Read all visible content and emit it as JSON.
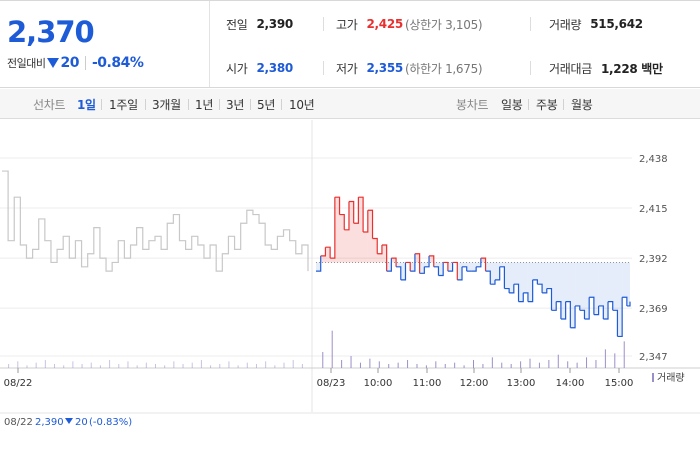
{
  "quote": {
    "price": "2,370",
    "change_label": "전일대비",
    "change_value": "20",
    "change_pct": "-0.84%",
    "prev_close_label": "전일",
    "prev_close": "2,390",
    "high_label": "고가",
    "high": "2,425",
    "upper_limit": "(상한가 3,105)",
    "volume_label": "거래량",
    "volume": "515,642",
    "open_label": "시가",
    "open": "2,380",
    "low_label": "저가",
    "low": "2,355",
    "lower_limit": "(하한가 1,675)",
    "trade_value_label": "거래대금",
    "trade_value": "1,228 백만"
  },
  "toolbar": {
    "line_chart_label": "선차트",
    "periods": [
      "1일",
      "1주일",
      "3개월",
      "1년",
      "3년",
      "5년",
      "10년"
    ],
    "active_period": "1일",
    "candle_chart_label": "봉차트",
    "candle_periods": [
      "일봉",
      "주봉",
      "월봉"
    ]
  },
  "colors": {
    "up": "#e8312f",
    "down": "#1e5bd6",
    "prev_day": "#c8c8c8",
    "volume": "#9c8fc9"
  },
  "chart_data": {
    "type": "line",
    "y_ticks": [
      "2,438",
      "2,415",
      "2,392",
      "2,369",
      "2,347"
    ],
    "ylim": [
      2347,
      2438
    ],
    "reference_price": 2390,
    "x_ticks": [
      "08/22",
      "08/23",
      "10:00",
      "11:00",
      "12:00",
      "13:00",
      "14:00",
      "15:00"
    ],
    "volume_legend": "거래량",
    "info_date": "08/22",
    "info_price": "2,390",
    "info_change": "20",
    "info_pct": "(-0.83%)",
    "prev_day_series": {
      "x": [
        0,
        2,
        4,
        6,
        8,
        10,
        12,
        14,
        16,
        18,
        20,
        22,
        24,
        26,
        28,
        30,
        32,
        34,
        36,
        38,
        40,
        42,
        44,
        46,
        48,
        50,
        52,
        54,
        56,
        58,
        60,
        62,
        64,
        66,
        68,
        70,
        72,
        74,
        76,
        78,
        80,
        82,
        84,
        86,
        88,
        90,
        92,
        94,
        96,
        98,
        100
      ],
      "values": [
        2432,
        2400,
        2420,
        2398,
        2392,
        2396,
        2410,
        2400,
        2390,
        2396,
        2402,
        2392,
        2400,
        2388,
        2394,
        2406,
        2392,
        2386,
        2390,
        2400,
        2392,
        2398,
        2406,
        2396,
        2400,
        2402,
        2396,
        2408,
        2412,
        2400,
        2396,
        2402,
        2398,
        2392,
        2398,
        2386,
        2394,
        2402,
        2396,
        2408,
        2414,
        2412,
        2408,
        2398,
        2396,
        2402,
        2405,
        2400,
        2394,
        2398,
        2386
      ]
    },
    "today_series": {
      "x": [
        0,
        1.5,
        3,
        4.5,
        6,
        7.5,
        9,
        10.5,
        12,
        13.5,
        15,
        16.5,
        18,
        19.5,
        21,
        22.5,
        24,
        25.5,
        27,
        28.5,
        30,
        31.5,
        33,
        34.5,
        36,
        37.5,
        39,
        40.5,
        42,
        43.5,
        45,
        46.5,
        48,
        49.5,
        51,
        52.5,
        54,
        55.5,
        57,
        58.5,
        60,
        61.5,
        63,
        64.5,
        66,
        67.5,
        69,
        70.5,
        72,
        73.5,
        75,
        76.5,
        78,
        79.5,
        81,
        82.5,
        84,
        85.5,
        87,
        88.5,
        90,
        91.5,
        93,
        94.5,
        96,
        97.5,
        99,
        100
      ],
      "values": [
        2386,
        2393,
        2397,
        2392,
        2420,
        2412,
        2405,
        2418,
        2408,
        2420,
        2404,
        2414,
        2401,
        2394,
        2398,
        2386,
        2392,
        2388,
        2382,
        2390,
        2386,
        2394,
        2385,
        2388,
        2393,
        2388,
        2384,
        2390,
        2386,
        2390,
        2382,
        2388,
        2386,
        2386,
        2388,
        2392,
        2386,
        2380,
        2382,
        2388,
        2378,
        2376,
        2380,
        2372,
        2376,
        2372,
        2382,
        2380,
        2376,
        2378,
        2368,
        2372,
        2364,
        2372,
        2360,
        2370,
        2368,
        2364,
        2374,
        2366,
        2370,
        2364,
        2372,
        2368,
        2356,
        2374,
        2370,
        2372
      ]
    },
    "volume": {
      "x": [
        2,
        5,
        8,
        11,
        14,
        17,
        20,
        23,
        26,
        29,
        32,
        35,
        38,
        41,
        44,
        47,
        50,
        53,
        56,
        59,
        62,
        65,
        68,
        71,
        74,
        77,
        80,
        83,
        86,
        89,
        92,
        95,
        98
      ],
      "prev_values": [
        3,
        5,
        2,
        4,
        6,
        3,
        2,
        5,
        3,
        4,
        2,
        6,
        3,
        5,
        2,
        4,
        3,
        2,
        5,
        3,
        4,
        6,
        2,
        3,
        5,
        2,
        4,
        3,
        5,
        2,
        4,
        6,
        3
      ],
      "today_values": [
        12,
        28,
        6,
        9,
        4,
        7,
        5,
        3,
        4,
        6,
        3,
        2,
        5,
        3,
        4,
        2,
        6,
        3,
        8,
        4,
        3,
        5,
        7,
        4,
        6,
        10,
        5,
        4,
        8,
        6,
        14,
        11,
        20
      ]
    }
  }
}
